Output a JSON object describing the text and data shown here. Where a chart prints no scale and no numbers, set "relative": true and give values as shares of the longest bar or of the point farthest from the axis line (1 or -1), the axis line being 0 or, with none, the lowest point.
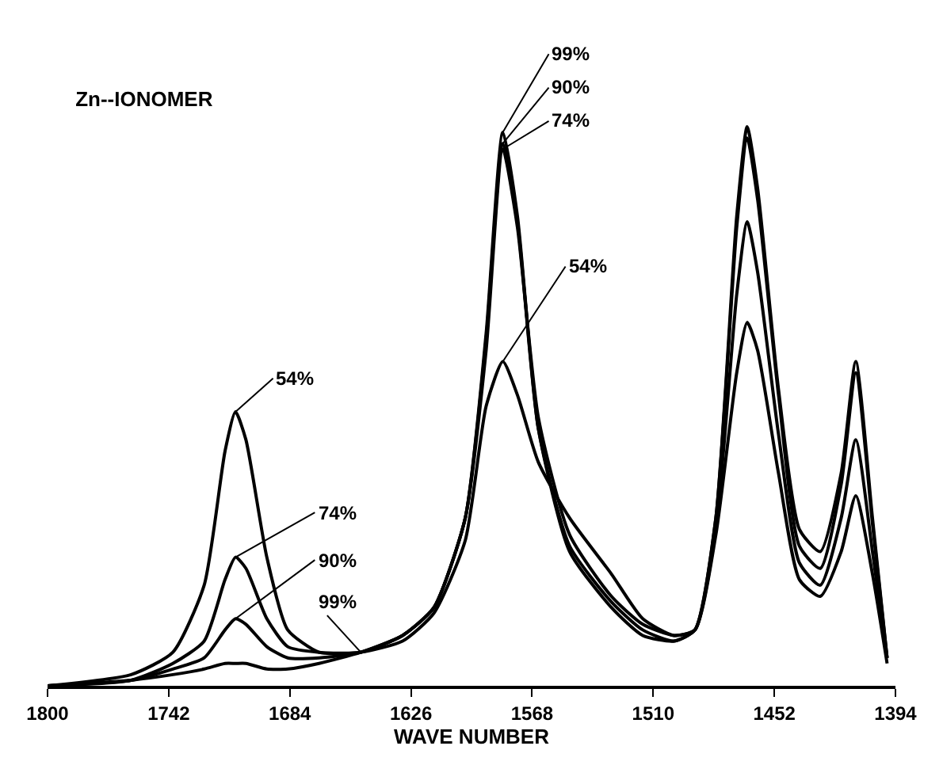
{
  "chart_data": {
    "type": "line",
    "title": "Zn--IONOMER",
    "xlabel": "WAVE NUMBER",
    "relative": true,
    "xlim": [
      1800,
      1394
    ],
    "xticks": [
      1800,
      1742,
      1684,
      1626,
      1568,
      1510,
      1452,
      1394
    ],
    "grid": false,
    "legend": false,
    "marker": "none",
    "line_style": "solid",
    "x": [
      1800,
      1760,
      1740,
      1725,
      1715,
      1710,
      1705,
      1695,
      1685,
      1670,
      1650,
      1630,
      1615,
      1600,
      1590,
      1582,
      1575,
      1565,
      1550,
      1530,
      1515,
      1500,
      1490,
      1480,
      1470,
      1465,
      1460,
      1450,
      1440,
      1430,
      1420,
      1413,
      1405,
      1398
    ],
    "series": [
      {
        "name": "99%",
        "color": "#000000",
        "values": [
          0,
          0.01,
          0.02,
          0.03,
          0.04,
          0.04,
          0.04,
          0.03,
          0.03,
          0.04,
          0.06,
          0.09,
          0.14,
          0.3,
          0.63,
          0.99,
          0.84,
          0.46,
          0.24,
          0.14,
          0.09,
          0.08,
          0.1,
          0.3,
          0.84,
          1,
          0.89,
          0.53,
          0.28,
          0.24,
          0.38,
          0.58,
          0.3,
          0.05
        ]
      },
      {
        "name": "90%",
        "color": "#000000",
        "values": [
          0,
          0.01,
          0.03,
          0.05,
          0.1,
          0.12,
          0.11,
          0.07,
          0.05,
          0.05,
          0.06,
          0.09,
          0.14,
          0.3,
          0.62,
          0.97,
          0.83,
          0.46,
          0.25,
          0.15,
          0.1,
          0.08,
          0.1,
          0.3,
          0.82,
          0.98,
          0.87,
          0.52,
          0.25,
          0.21,
          0.36,
          0.56,
          0.29,
          0.05
        ]
      },
      {
        "name": "74%",
        "color": "#000000",
        "values": [
          0,
          0.01,
          0.04,
          0.08,
          0.19,
          0.23,
          0.21,
          0.12,
          0.07,
          0.06,
          0.06,
          0.09,
          0.14,
          0.3,
          0.6,
          0.96,
          0.82,
          0.48,
          0.27,
          0.16,
          0.11,
          0.09,
          0.1,
          0.28,
          0.7,
          0.83,
          0.74,
          0.45,
          0.22,
          0.18,
          0.3,
          0.44,
          0.24,
          0.05
        ]
      },
      {
        "name": "54%",
        "color": "#000000",
        "values": [
          0,
          0.02,
          0.06,
          0.18,
          0.42,
          0.49,
          0.44,
          0.23,
          0.1,
          0.06,
          0.06,
          0.08,
          0.13,
          0.26,
          0.5,
          0.58,
          0.52,
          0.4,
          0.3,
          0.2,
          0.12,
          0.09,
          0.1,
          0.27,
          0.56,
          0.65,
          0.6,
          0.38,
          0.19,
          0.16,
          0.24,
          0.34,
          0.2,
          0.04
        ]
      }
    ]
  }
}
